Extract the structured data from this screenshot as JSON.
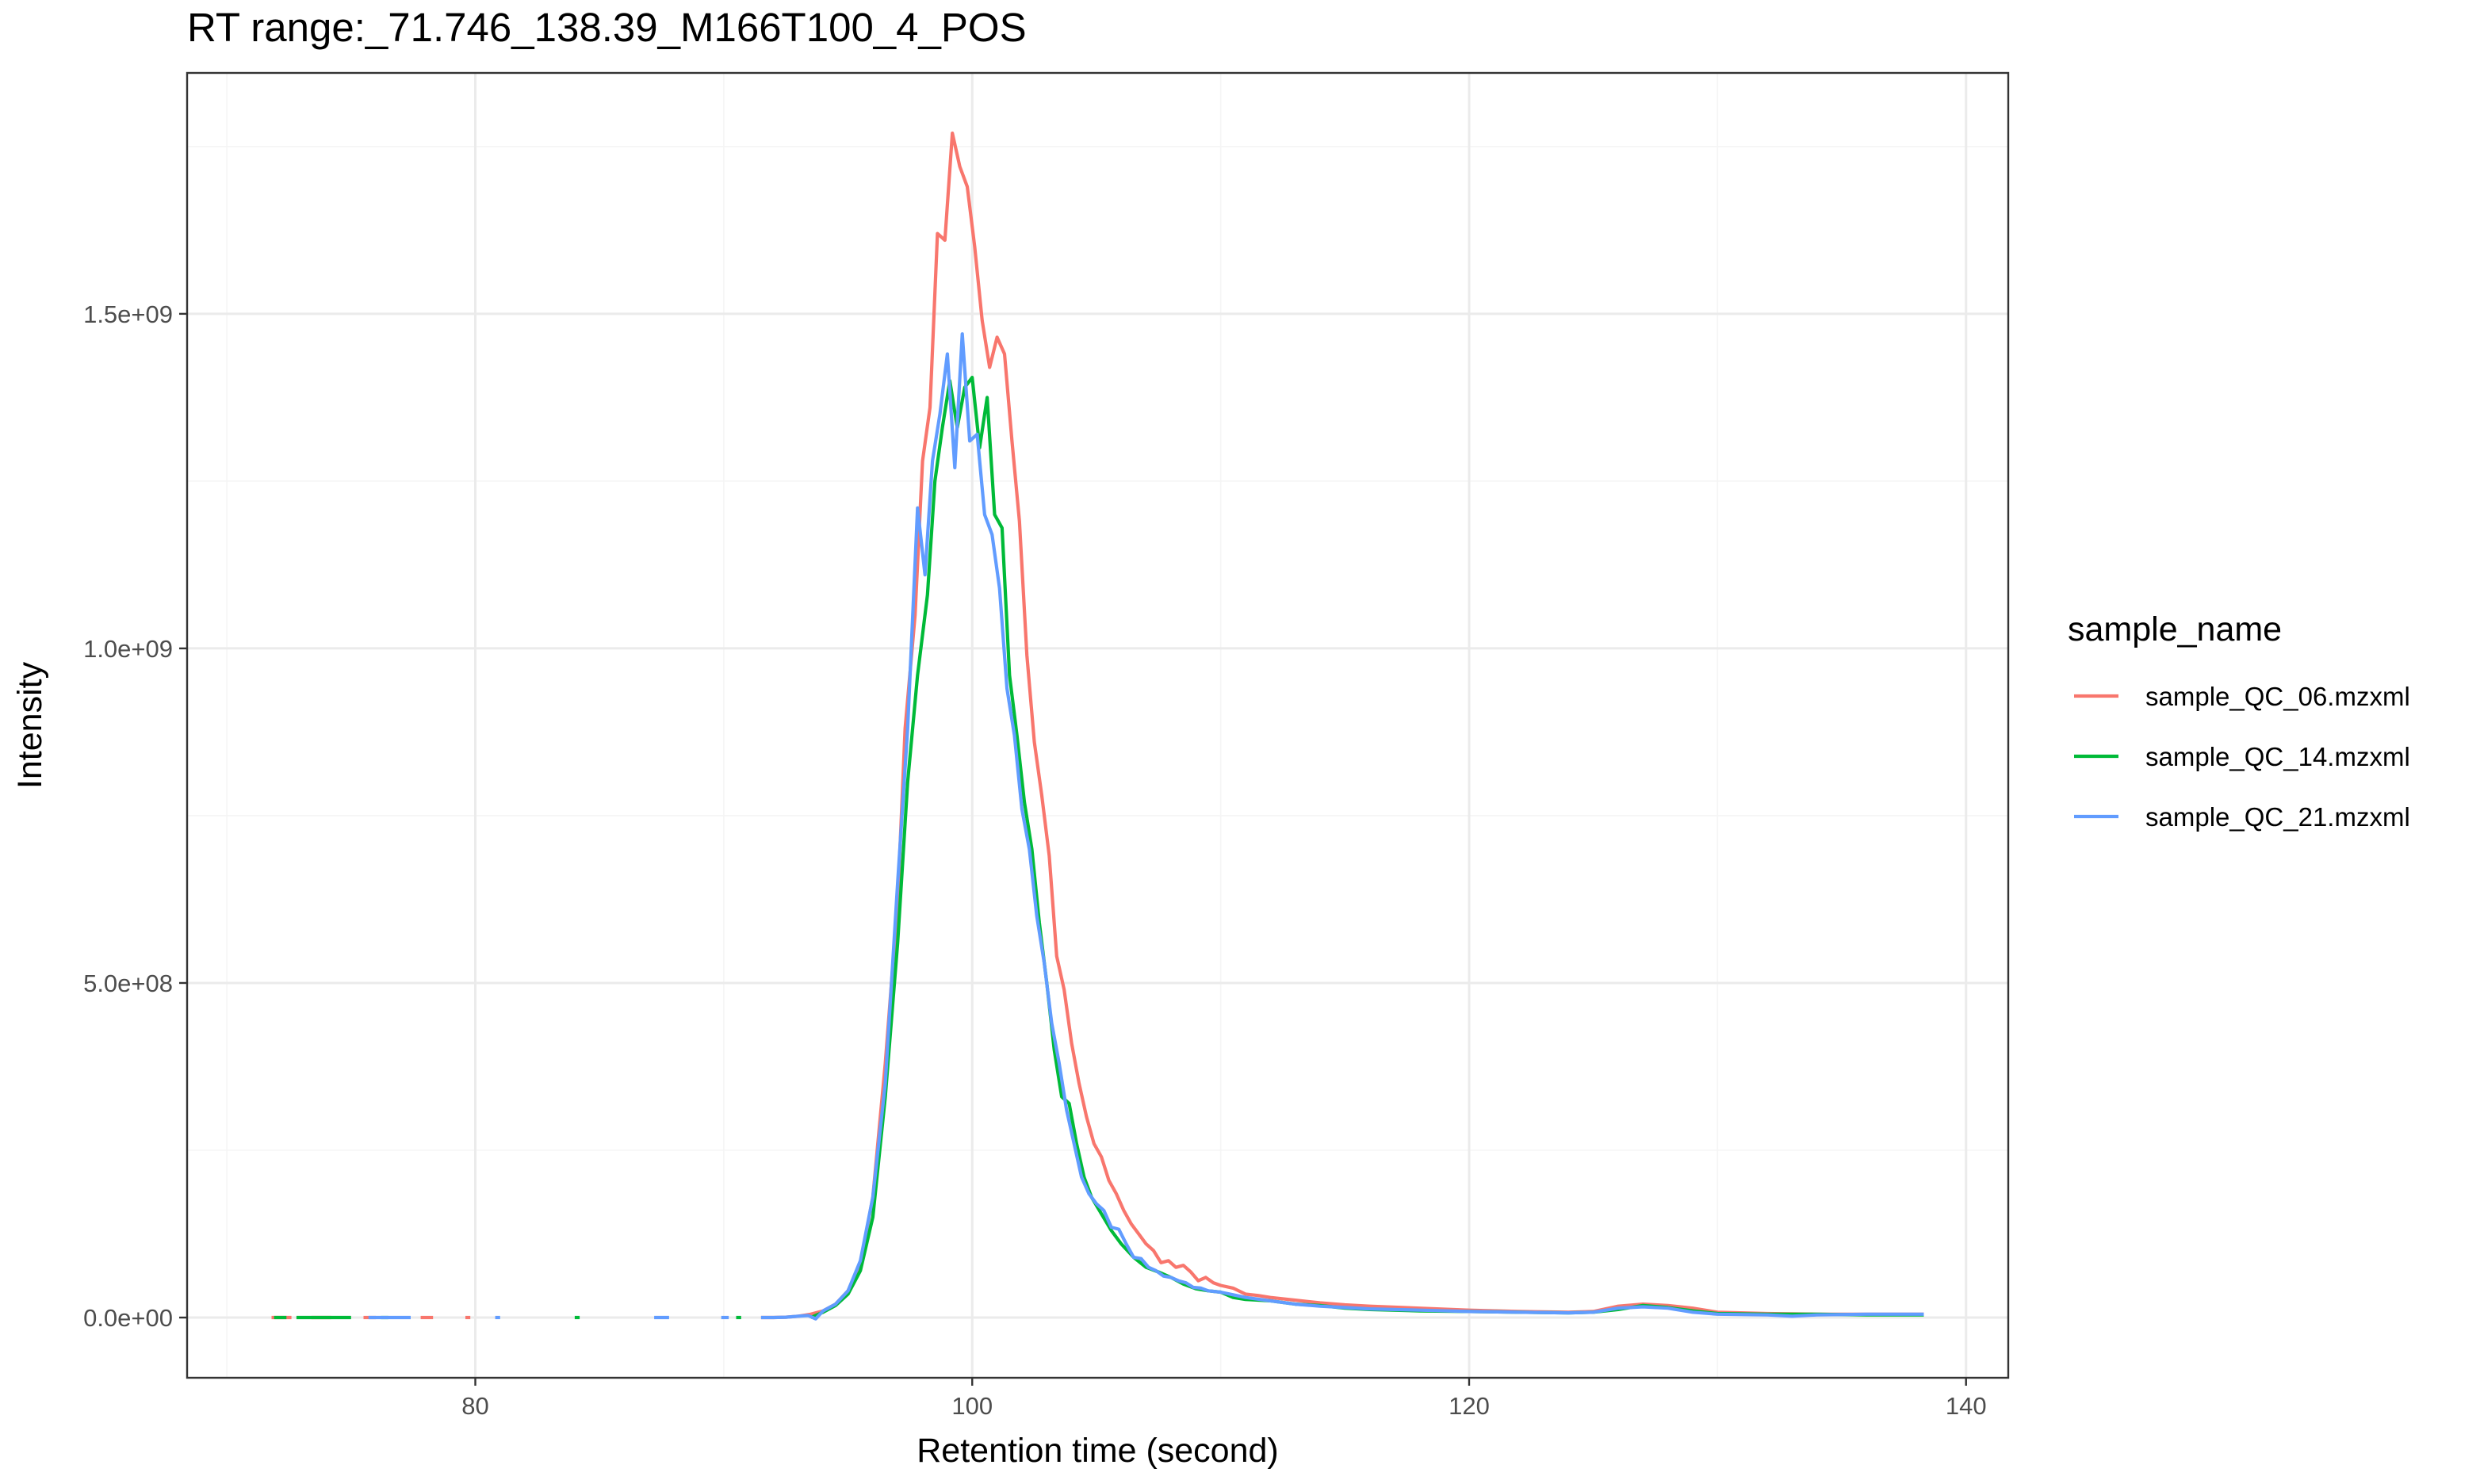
{
  "chart_data": {
    "type": "line",
    "title": "RT range:_71.746_138.39_M166T100_4_POS",
    "xlabel": "Retention time (second)",
    "ylabel": "Intensity",
    "xlim": [
      68.4,
      141.7
    ],
    "ylim": [
      -90000000,
      1860000000
    ],
    "x_ticks": [
      80,
      100,
      120,
      140
    ],
    "x_tick_labels": [
      "80",
      "100",
      "120",
      "140"
    ],
    "x_minor": [
      70,
      90,
      110,
      130
    ],
    "y_ticks": [
      0,
      500000000,
      1000000000,
      1500000000
    ],
    "y_tick_labels": [
      "0.0e+00",
      "5.0e+08",
      "1.0e+09",
      "1.5e+09"
    ],
    "y_minor": [
      250000000,
      750000000,
      1250000000,
      1750000000
    ],
    "grid": true,
    "legend": {
      "title": "sample_name",
      "position": "right"
    },
    "series": [
      {
        "name": "sample_QC_06.mzxml",
        "color": "#F8766D",
        "segments": [
          [
            [
              71.8,
              0
            ],
            [
              72.6,
              0
            ]
          ],
          [
            [
              73.4,
              0
            ],
            [
              74.2,
              0
            ]
          ],
          [
            [
              75.5,
              0
            ],
            [
              76.0,
              0
            ]
          ],
          [
            [
              77.8,
              0
            ],
            [
              78.3,
              0
            ]
          ],
          [
            [
              79.6,
              0
            ],
            [
              79.8,
              0
            ]
          ],
          [
            [
              91.5,
              0
            ],
            [
              92.0,
              0
            ],
            [
              92.5,
              500000
            ],
            [
              93.0,
              2000000
            ],
            [
              93.5,
              5000000
            ],
            [
              94.0,
              10000000
            ],
            [
              94.5,
              20000000
            ],
            [
              95.0,
              40000000
            ],
            [
              95.5,
              80000000
            ],
            [
              96.0,
              180000000
            ],
            [
              96.5,
              380000000
            ],
            [
              97.0,
              620000000
            ],
            [
              97.3,
              880000000
            ],
            [
              97.7,
              1050000000
            ],
            [
              98.0,
              1280000000
            ],
            [
              98.3,
              1360000000
            ],
            [
              98.6,
              1620000000
            ],
            [
              98.9,
              1610000000
            ],
            [
              99.2,
              1770000000
            ],
            [
              99.5,
              1720000000
            ],
            [
              99.8,
              1690000000
            ],
            [
              100.1,
              1600000000
            ],
            [
              100.4,
              1490000000
            ],
            [
              100.7,
              1420000000
            ],
            [
              101.0,
              1465000000
            ],
            [
              101.3,
              1440000000
            ],
            [
              101.6,
              1310000000
            ],
            [
              101.9,
              1190000000
            ],
            [
              102.2,
              990000000
            ],
            [
              102.5,
              860000000
            ],
            [
              102.8,
              780000000
            ],
            [
              103.1,
              690000000
            ],
            [
              103.4,
              540000000
            ],
            [
              103.7,
              490000000
            ],
            [
              104.0,
              410000000
            ],
            [
              104.3,
              350000000
            ],
            [
              104.6,
              300000000
            ],
            [
              104.9,
              260000000
            ],
            [
              105.2,
              240000000
            ],
            [
              105.5,
              205000000
            ],
            [
              105.8,
              185000000
            ],
            [
              106.1,
              160000000
            ],
            [
              106.4,
              140000000
            ],
            [
              106.7,
              125000000
            ],
            [
              107.0,
              110000000
            ],
            [
              107.3,
              100000000
            ],
            [
              107.6,
              82000000
            ],
            [
              107.9,
              85000000
            ],
            [
              108.2,
              75000000
            ],
            [
              108.5,
              78000000
            ],
            [
              108.8,
              68000000
            ],
            [
              109.1,
              55000000
            ],
            [
              109.4,
              60000000
            ],
            [
              109.7,
              52000000
            ],
            [
              110.0,
              48000000
            ],
            [
              110.5,
              44000000
            ],
            [
              111.0,
              35000000
            ],
            [
              111.5,
              33000000
            ],
            [
              112.0,
              30000000
            ],
            [
              113.0,
              26000000
            ],
            [
              114.0,
              22000000
            ],
            [
              115.0,
              19000000
            ],
            [
              116.0,
              17000000
            ],
            [
              118.0,
              14000000
            ],
            [
              120.0,
              11000000
            ],
            [
              122.0,
              9000000
            ],
            [
              124.0,
              8000000
            ],
            [
              125.0,
              9000000
            ],
            [
              126.0,
              17000000
            ],
            [
              127.0,
              20000000
            ],
            [
              128.0,
              18000000
            ],
            [
              129.0,
              14000000
            ],
            [
              130.0,
              8000000
            ],
            [
              132.0,
              6000000
            ],
            [
              134.0,
              5000000
            ],
            [
              136.0,
              5000000
            ],
            [
              138.3,
              5000000
            ]
          ]
        ]
      },
      {
        "name": "sample_QC_14.mzxml",
        "color": "#00BA38",
        "segments": [
          [
            [
              71.9,
              0
            ],
            [
              72.4,
              0
            ]
          ],
          [
            [
              72.8,
              0
            ],
            [
              75.0,
              0
            ]
          ],
          [
            [
              76.2,
              0
            ],
            [
              76.5,
              0
            ]
          ],
          [
            [
              84.0,
              0
            ],
            [
              84.2,
              0
            ]
          ],
          [
            [
              90.5,
              0
            ],
            [
              90.7,
              0
            ]
          ],
          [
            [
              93.5,
              0
            ],
            [
              94.0,
              8000000
            ],
            [
              94.5,
              18000000
            ],
            [
              95.0,
              35000000
            ],
            [
              95.5,
              70000000
            ],
            [
              96.0,
              150000000
            ],
            [
              96.5,
              330000000
            ],
            [
              97.0,
              560000000
            ],
            [
              97.4,
              800000000
            ],
            [
              97.8,
              960000000
            ],
            [
              98.2,
              1080000000
            ],
            [
              98.5,
              1250000000
            ],
            [
              98.8,
              1330000000
            ],
            [
              99.1,
              1400000000
            ],
            [
              99.4,
              1330000000
            ],
            [
              99.7,
              1390000000
            ],
            [
              100.0,
              1405000000
            ],
            [
              100.3,
              1300000000
            ],
            [
              100.6,
              1375000000
            ],
            [
              100.9,
              1200000000
            ],
            [
              101.2,
              1180000000
            ],
            [
              101.5,
              960000000
            ],
            [
              101.8,
              870000000
            ],
            [
              102.1,
              770000000
            ],
            [
              102.4,
              700000000
            ],
            [
              102.7,
              590000000
            ],
            [
              103.0,
              500000000
            ],
            [
              103.3,
              400000000
            ],
            [
              103.6,
              330000000
            ],
            [
              103.9,
              320000000
            ],
            [
              104.2,
              260000000
            ],
            [
              104.5,
              210000000
            ],
            [
              104.8,
              180000000
            ],
            [
              105.2,
              155000000
            ],
            [
              105.6,
              130000000
            ],
            [
              106.0,
              110000000
            ],
            [
              106.5,
              90000000
            ],
            [
              107.0,
              75000000
            ],
            [
              107.5,
              68000000
            ],
            [
              108.0,
              60000000
            ],
            [
              108.5,
              50000000
            ],
            [
              109.0,
              43000000
            ],
            [
              109.5,
              40000000
            ],
            [
              110.0,
              38000000
            ],
            [
              110.5,
              30000000
            ],
            [
              111.0,
              27000000
            ],
            [
              112.0,
              25000000
            ],
            [
              113.0,
              20000000
            ],
            [
              114.0,
              18000000
            ],
            [
              115.0,
              14000000
            ],
            [
              116.0,
              12000000
            ],
            [
              118.0,
              10000000
            ],
            [
              120.0,
              9000000
            ],
            [
              122.0,
              8000000
            ],
            [
              124.0,
              7000000
            ],
            [
              125.0,
              8000000
            ],
            [
              126.0,
              12000000
            ],
            [
              127.0,
              18000000
            ],
            [
              128.0,
              15000000
            ],
            [
              129.0,
              10000000
            ],
            [
              130.0,
              6000000
            ],
            [
              132.0,
              5000000
            ],
            [
              134.0,
              5000000
            ],
            [
              136.0,
              4000000
            ],
            [
              138.3,
              4000000
            ]
          ]
        ]
      },
      {
        "name": "sample_QC_21.mzxml",
        "color": "#619CFF",
        "segments": [
          [
            [
              75.7,
              0
            ],
            [
              77.4,
              0
            ]
          ],
          [
            [
              80.8,
              0
            ],
            [
              81.0,
              0
            ]
          ],
          [
            [
              87.2,
              0
            ],
            [
              87.8,
              0
            ]
          ],
          [
            [
              89.9,
              0
            ],
            [
              90.2,
              0
            ]
          ],
          [
            [
              91.5,
              0
            ],
            [
              92.0,
              0
            ],
            [
              92.5,
              500000
            ],
            [
              93.0,
              2000000
            ],
            [
              93.4,
              3000000
            ],
            [
              93.7,
              -2000000
            ],
            [
              94.0,
              10000000
            ],
            [
              94.5,
              20000000
            ],
            [
              95.0,
              40000000
            ],
            [
              95.5,
              85000000
            ],
            [
              96.0,
              180000000
            ],
            [
              96.5,
              350000000
            ],
            [
              97.0,
              650000000
            ],
            [
              97.4,
              880000000
            ],
            [
              97.8,
              1210000000
            ],
            [
              98.1,
              1110000000
            ],
            [
              98.4,
              1280000000
            ],
            [
              98.7,
              1350000000
            ],
            [
              99.0,
              1440000000
            ],
            [
              99.3,
              1270000000
            ],
            [
              99.6,
              1470000000
            ],
            [
              99.9,
              1310000000
            ],
            [
              100.2,
              1320000000
            ],
            [
              100.5,
              1200000000
            ],
            [
              100.8,
              1170000000
            ],
            [
              101.1,
              1090000000
            ],
            [
              101.4,
              940000000
            ],
            [
              101.7,
              870000000
            ],
            [
              102.0,
              760000000
            ],
            [
              102.3,
              700000000
            ],
            [
              102.6,
              600000000
            ],
            [
              102.9,
              530000000
            ],
            [
              103.2,
              440000000
            ],
            [
              103.5,
              380000000
            ],
            [
              103.8,
              310000000
            ],
            [
              104.1,
              260000000
            ],
            [
              104.4,
              210000000
            ],
            [
              104.7,
              185000000
            ],
            [
              105.0,
              170000000
            ],
            [
              105.3,
              160000000
            ],
            [
              105.6,
              135000000
            ],
            [
              105.9,
              132000000
            ],
            [
              106.2,
              110000000
            ],
            [
              106.5,
              90000000
            ],
            [
              106.8,
              88000000
            ],
            [
              107.1,
              75000000
            ],
            [
              107.4,
              70000000
            ],
            [
              107.7,
              62000000
            ],
            [
              108.0,
              60000000
            ],
            [
              108.3,
              55000000
            ],
            [
              108.6,
              52000000
            ],
            [
              108.9,
              45000000
            ],
            [
              109.2,
              44000000
            ],
            [
              109.5,
              40000000
            ],
            [
              110.0,
              38000000
            ],
            [
              110.5,
              34000000
            ],
            [
              111.0,
              30000000
            ],
            [
              112.0,
              25000000
            ],
            [
              113.0,
              20000000
            ],
            [
              114.0,
              17000000
            ],
            [
              115.0,
              15000000
            ],
            [
              116.0,
              13000000
            ],
            [
              118.0,
              11000000
            ],
            [
              120.0,
              9000000
            ],
            [
              122.0,
              8000000
            ],
            [
              124.0,
              7000000
            ],
            [
              125.0,
              8000000
            ],
            [
              126.0,
              14000000
            ],
            [
              127.0,
              16000000
            ],
            [
              128.0,
              14000000
            ],
            [
              129.0,
              8000000
            ],
            [
              130.0,
              5000000
            ],
            [
              132.0,
              4000000
            ],
            [
              133.0,
              2000000
            ],
            [
              134.0,
              4000000
            ],
            [
              136.0,
              5000000
            ],
            [
              138.3,
              5000000
            ]
          ]
        ]
      }
    ]
  }
}
